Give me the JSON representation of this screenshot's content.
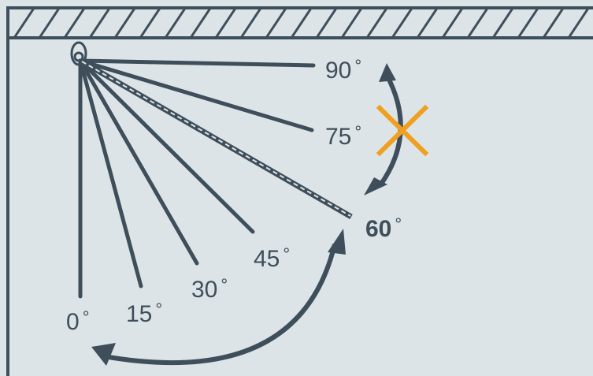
{
  "diagram": {
    "angles": [
      {
        "value": "0",
        "unit": "°",
        "emphasis": false
      },
      {
        "value": "15",
        "unit": "°",
        "emphasis": false
      },
      {
        "value": "30",
        "unit": "°",
        "emphasis": false
      },
      {
        "value": "45",
        "unit": "°",
        "emphasis": false
      },
      {
        "value": "60",
        "unit": "°",
        "emphasis": true
      },
      {
        "value": "75",
        "unit": "°",
        "emphasis": false
      },
      {
        "value": "90",
        "unit": "°",
        "emphasis": false
      }
    ],
    "icons": {
      "anchor": "pivot-eyelet-icon",
      "allowed_range": "double-arrow-icon",
      "forbidden_range": "cross-icon"
    },
    "colors": {
      "background": "#dce4e8",
      "stroke": "#3e4e5a",
      "forbidden": "#f0a020"
    }
  }
}
